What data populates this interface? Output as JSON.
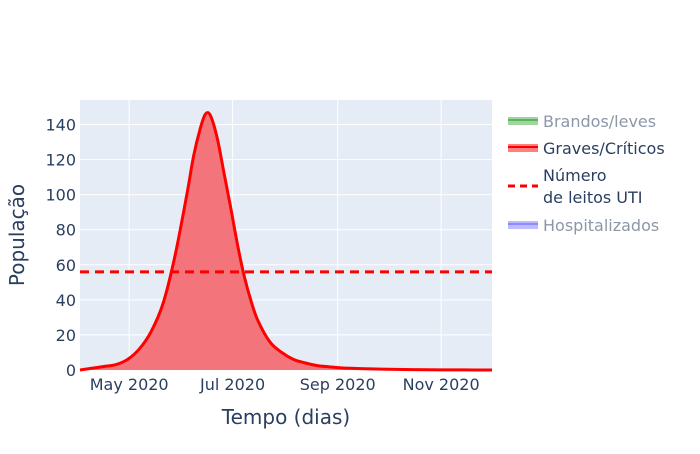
{
  "chart_data": {
    "type": "area",
    "title": "",
    "xlabel": "Tempo (dias)",
    "ylabel": "População",
    "x_axis": {
      "type": "date",
      "range": [
        "2020-04-02",
        "2020-12-01"
      ],
      "ticks": [
        {
          "date": "2020-05-01",
          "label": "May 2020"
        },
        {
          "date": "2020-07-01",
          "label": "Jul 2020"
        },
        {
          "date": "2020-09-01",
          "label": "Sep 2020"
        },
        {
          "date": "2020-11-01",
          "label": "Nov 2020"
        }
      ]
    },
    "y_axis": {
      "range": [
        0,
        154
      ],
      "ticks": [
        0,
        20,
        40,
        60,
        80,
        100,
        120,
        140
      ]
    },
    "grid": true,
    "background_color": "#e5ecf6",
    "legend_position": "right",
    "series": [
      {
        "name": "Brandos/leves",
        "visible": false,
        "color": "#2ca02c",
        "line_style": "solid",
        "x": [],
        "y": []
      },
      {
        "name": "Graves/Críticos",
        "visible": true,
        "color": "#ff0000",
        "fill_color": "#f4747b",
        "line_style": "solid",
        "fill": true,
        "x": [
          "2020-04-02",
          "2020-04-09",
          "2020-04-16",
          "2020-04-23",
          "2020-04-30",
          "2020-05-07",
          "2020-05-14",
          "2020-05-21",
          "2020-05-28",
          "2020-06-04",
          "2020-06-08",
          "2020-06-12",
          "2020-06-15",
          "2020-06-18",
          "2020-06-22",
          "2020-06-26",
          "2020-06-30",
          "2020-07-04",
          "2020-07-08",
          "2020-07-12",
          "2020-07-16",
          "2020-07-23",
          "2020-07-30",
          "2020-08-06",
          "2020-08-13",
          "2020-08-20",
          "2020-08-27",
          "2020-09-03",
          "2020-09-17",
          "2020-10-01",
          "2020-10-15",
          "2020-11-01",
          "2020-11-15",
          "2020-12-01"
        ],
        "y": [
          0,
          1,
          2,
          3,
          6,
          12,
          22,
          38,
          65,
          100,
          122,
          138,
          146,
          145,
          132,
          112,
          92,
          71,
          53,
          39,
          28,
          16,
          10,
          6,
          4,
          2.5,
          1.8,
          1.2,
          0.7,
          0.4,
          0.2,
          0.1,
          0.05,
          0
        ]
      },
      {
        "name": "Número de leitos UTI",
        "legend_lines": [
          "Número",
          "de leitos UTI"
        ],
        "visible": true,
        "color": "#ff0000",
        "line_style": "dash",
        "constant": 56
      },
      {
        "name": "Hospitalizados",
        "visible": false,
        "color": "#6b6bff",
        "line_style": "solid",
        "x": [],
        "y": []
      }
    ]
  }
}
